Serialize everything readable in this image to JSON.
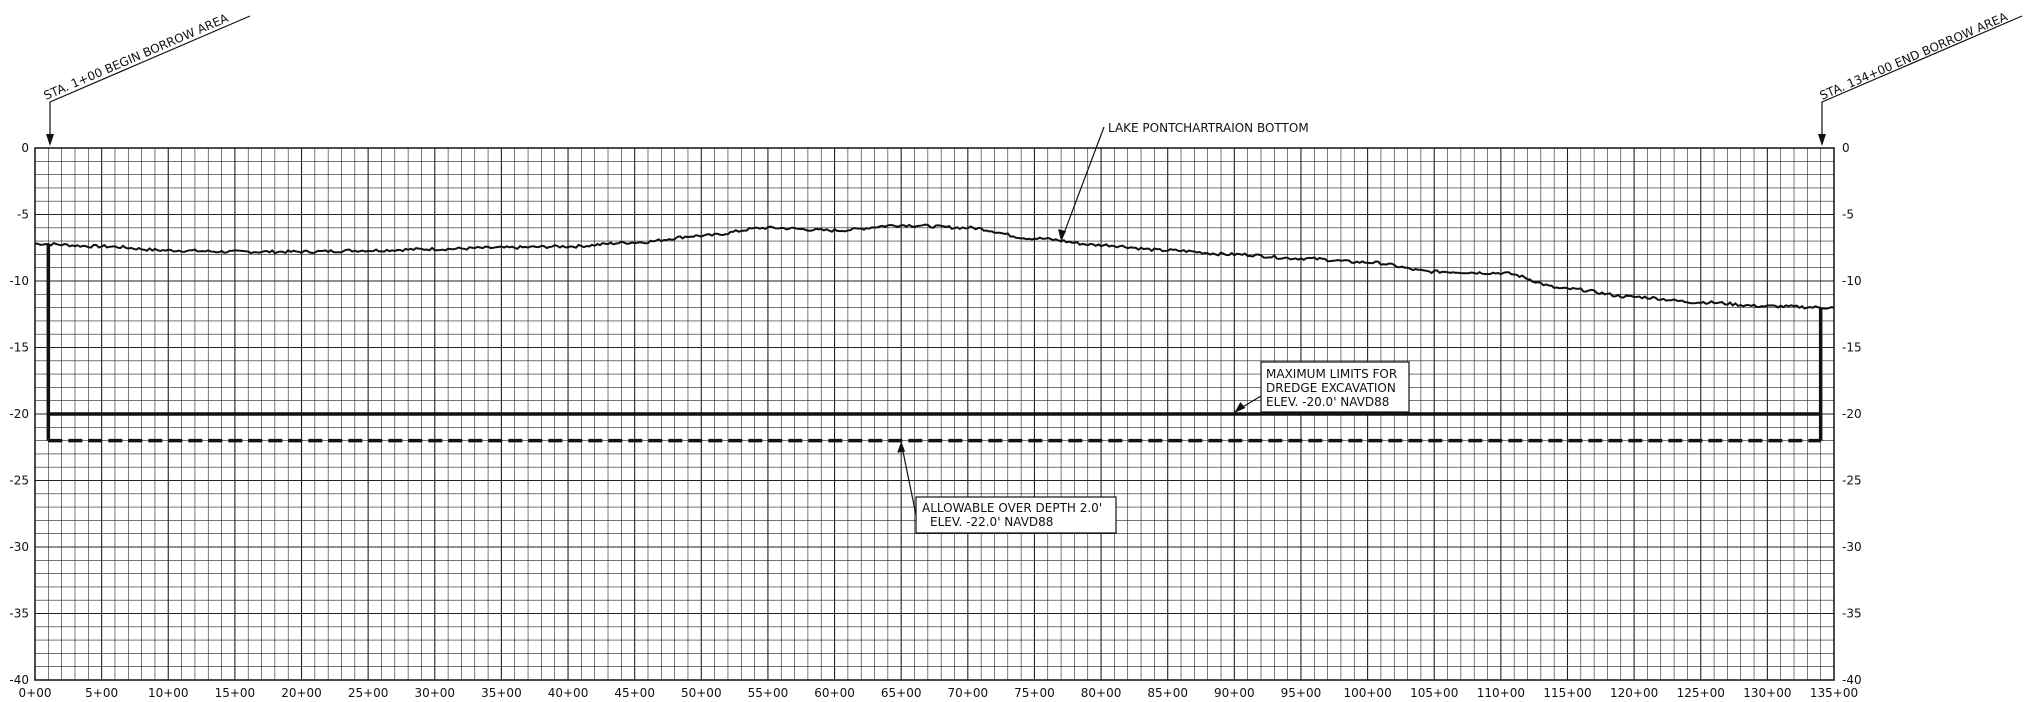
{
  "chart_data": {
    "type": "line",
    "x_tick_labels": [
      "0+00",
      "5+00",
      "10+00",
      "15+00",
      "20+00",
      "25+00",
      "30+00",
      "35+00",
      "40+00",
      "45+00",
      "50+00",
      "55+00",
      "60+00",
      "65+00",
      "70+00",
      "75+00",
      "80+00",
      "85+00",
      "90+00",
      "95+00",
      "100+00",
      "105+00",
      "110+00",
      "115+00",
      "120+00",
      "125+00",
      "130+00",
      "135+00"
    ],
    "y_tick_labels": [
      "0",
      "-5",
      "-10",
      "-15",
      "-20",
      "-25",
      "-30",
      "-35",
      "-40"
    ],
    "xlim": [
      0,
      135
    ],
    "ylim": [
      -40,
      0
    ],
    "grid": true,
    "lake_bottom": {
      "label": "LAKE PONTCHARTRAION BOTTOM",
      "x": [
        0,
        5,
        10,
        15,
        20,
        25,
        30,
        35,
        40,
        45,
        50,
        55,
        60,
        65,
        70,
        75,
        80,
        85,
        90,
        95,
        100,
        105,
        110,
        115,
        120,
        125,
        130,
        135
      ],
      "y": [
        -7.2,
        -7.4,
        -7.7,
        -7.8,
        -7.8,
        -7.7,
        -7.6,
        -7.5,
        -7.4,
        -7.1,
        -6.6,
        -6.0,
        -6.2,
        -5.8,
        -6.0,
        -6.8,
        -7.3,
        -7.7,
        -8.0,
        -8.3,
        -8.6,
        -9.3,
        -9.4,
        -10.6,
        -11.2,
        -11.6,
        -11.9,
        -12.0
      ]
    },
    "dredge_limit": {
      "elevation": -20.0,
      "x_start": 1,
      "x_end": 134,
      "label_lines": [
        "MAXIMUM LIMITS FOR",
        "DREDGE EXCAVATION",
        "ELEV. -20.0' NAVD88"
      ]
    },
    "over_depth": {
      "elevation": -22.0,
      "x_start": 1,
      "x_end": 134,
      "label_lines": [
        "ALLOWABLE OVER DEPTH 2.0'",
        "ELEV. -22.0' NAVD88"
      ]
    },
    "begin_station": {
      "x": 1,
      "label": "STA. 1+00 BEGIN BORROW AREA"
    },
    "end_station": {
      "x": 134,
      "label": "STA. 134+00 END BORROW AREA"
    }
  }
}
